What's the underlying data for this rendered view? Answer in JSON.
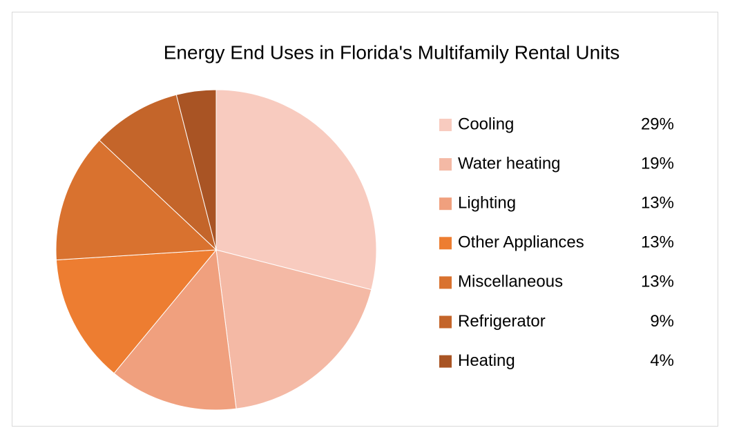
{
  "chart_data": {
    "type": "pie",
    "title": "Energy End Uses in Florida's Multifamily Rental Units",
    "categories": [
      "Cooling",
      "Water heating",
      "Lighting",
      "Other Appliances",
      "Miscellaneous",
      "Refrigerator",
      "Heating"
    ],
    "values": [
      29,
      19,
      13,
      13,
      13,
      9,
      4
    ],
    "value_labels": [
      "29%",
      "19%",
      "13%",
      "13%",
      "13%",
      "9%",
      "4%"
    ],
    "colors": [
      "#f8cbbf",
      "#f4b9a5",
      "#f0a07e",
      "#ed7d31",
      "#d9722f",
      "#c4652a",
      "#a95424"
    ],
    "legend": "right"
  }
}
